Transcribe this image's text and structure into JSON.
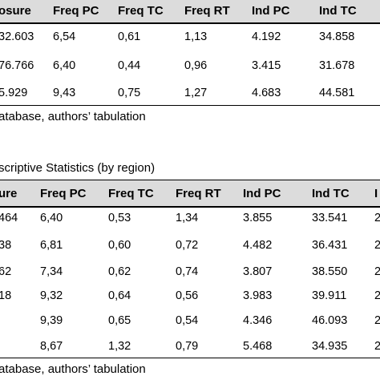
{
  "table1": {
    "headers": [
      "osure",
      "Freq PC",
      "Freq TC",
      "Freq RT",
      "Ind PC",
      "Ind TC"
    ],
    "rows": [
      [
        "32.603",
        "6,54",
        "0,61",
        "1,13",
        "4.192",
        "34.858"
      ],
      [
        "76.766",
        "6,40",
        "0,44",
        "0,96",
        "3.415",
        "31.678"
      ],
      [
        "5.929",
        "9,43",
        "0,75",
        "1,27",
        "4.683",
        "44.581"
      ]
    ],
    "source": "atabase, authors’ tabulation"
  },
  "table2": {
    "caption": "scriptive Statistics (by region)",
    "headers": [
      "ure",
      "Freq PC",
      "Freq TC",
      "Freq RT",
      "Ind PC",
      "Ind TC",
      "I"
    ],
    "rows": [
      [
        "464",
        "6,40",
        "0,53",
        "1,34",
        "3.855",
        "33.541",
        "2"
      ],
      [
        "38",
        "6,81",
        "0,60",
        "0,72",
        "4.482",
        "36.431",
        "2"
      ],
      [
        "62",
        "7,34",
        "0,62",
        "0,74",
        "3.807",
        "38.550",
        "2"
      ],
      [
        "18",
        "9,32",
        "0,64",
        "0,56",
        "3.983",
        "39.911",
        "2"
      ],
      [
        "",
        "9,39",
        "0,65",
        "0,54",
        "4.346",
        "46.093",
        "2"
      ],
      [
        "",
        "8,67",
        "1,32",
        "0,79",
        "5.468",
        "34.935",
        "2"
      ]
    ],
    "source": "atabase, authors’ tabulation"
  }
}
